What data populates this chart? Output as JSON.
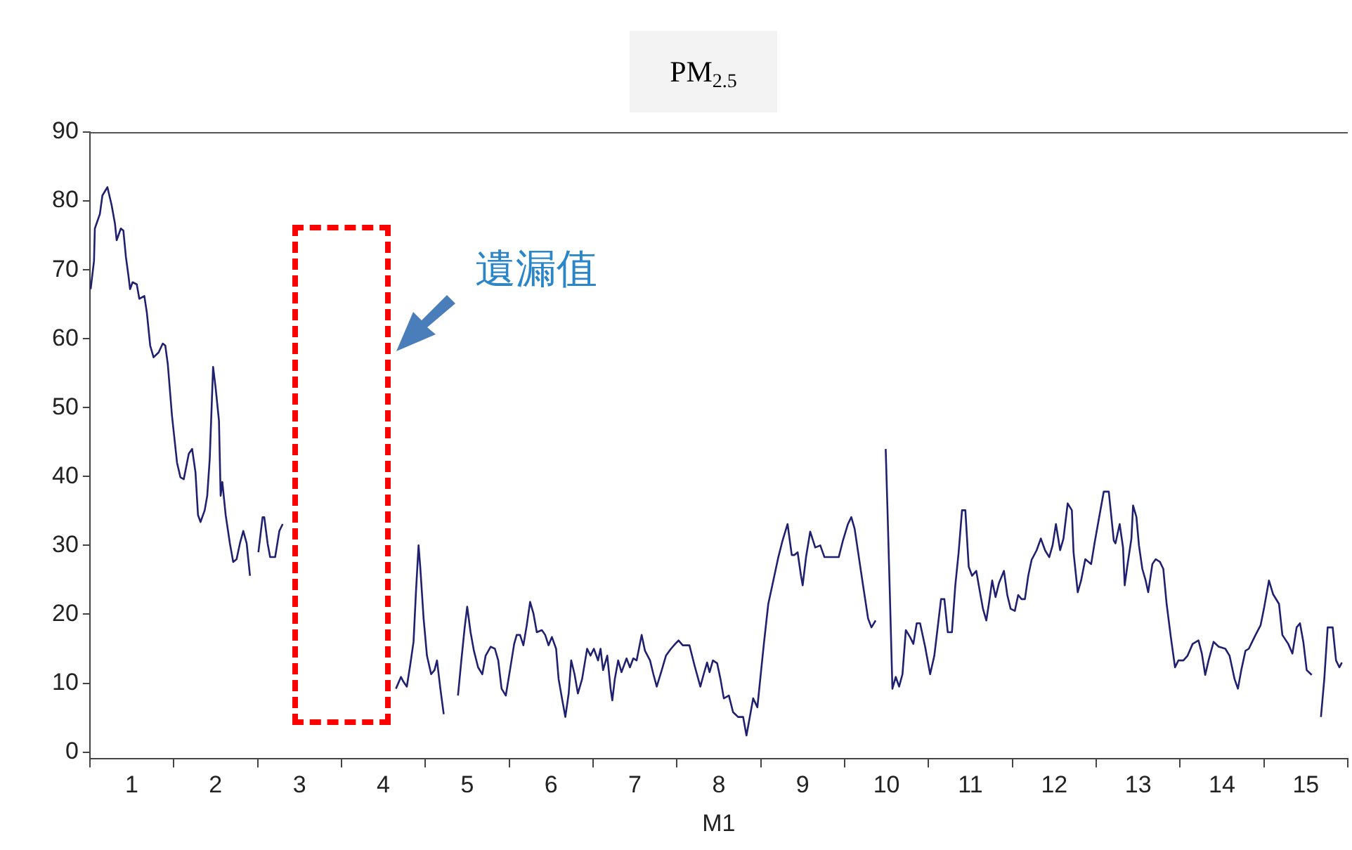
{
  "chart_data": {
    "type": "line",
    "title": "PM$_{2.5}$",
    "xlabel": "M1",
    "annotations": [
      "遺漏值"
    ],
    "xlim": [
      0.5,
      15.5
    ],
    "xticks": [
      {
        "value": 0.5,
        "label": null
      },
      1,
      {
        "value": 1.5,
        "label": null
      },
      2,
      {
        "value": 2.5,
        "label": null
      },
      3,
      {
        "value": 3.5,
        "label": null
      },
      4,
      {
        "value": 4.5,
        "label": null
      },
      5,
      {
        "value": 5.5,
        "label": null
      },
      6,
      {
        "value": 6.5,
        "label": null
      },
      7,
      {
        "value": 7.5,
        "label": null
      },
      8,
      {
        "value": 8.5,
        "label": null
      },
      9,
      {
        "value": 9.5,
        "label": null
      },
      10,
      {
        "value": 10.5,
        "label": null
      },
      11,
      {
        "value": 11.5,
        "label": null
      },
      12,
      {
        "value": 12.5,
        "label": null
      },
      13,
      {
        "value": 13.5,
        "label": null
      },
      14,
      {
        "value": 14.5,
        "label": null
      },
      15,
      {
        "value": 15.5,
        "label": null
      }
    ],
    "ylim": [
      -1,
      90
    ],
    "yticks": [
      0,
      10,
      20,
      30,
      40,
      50,
      60,
      70,
      80,
      90
    ],
    "grid": false,
    "legend": false,
    "marker": "none",
    "line_style": "solid",
    "series": [
      {
        "color": "#202070",
        "x": [
          0.51,
          0.55,
          0.56,
          0.62,
          0.65,
          0.71,
          0.76,
          0.8,
          0.82,
          0.87,
          0.9,
          0.93,
          0.96,
          0.98,
          1.01,
          1.06,
          1.09,
          1.15,
          1.18,
          1.22,
          1.26,
          1.32,
          1.37,
          1.4,
          1.43,
          1.48,
          1.54,
          1.58,
          1.62,
          1.68,
          1.72,
          1.76,
          1.79,
          1.82,
          1.87,
          1.9,
          1.93,
          1.97,
          2.0,
          2.04,
          2.06,
          2.08,
          2.12,
          2.17,
          2.21,
          2.25,
          2.29,
          2.33,
          2.37,
          2.41,
          2.46,
          2.51,
          2.56,
          2.58,
          2.62,
          2.65,
          2.71,
          2.76,
          2.8,
          3.5,
          4.15,
          4.21,
          4.24,
          4.28,
          4.32,
          4.36,
          4.39,
          4.42,
          4.44,
          4.48,
          4.52,
          4.57,
          4.61,
          4.64,
          4.68,
          4.72,
          4.8,
          4.89,
          4.93,
          4.97,
          5.0,
          5.04,
          5.08,
          5.13,
          5.18,
          5.22,
          5.28,
          5.33,
          5.37,
          5.41,
          5.46,
          5.51,
          5.56,
          5.59,
          5.63,
          5.67,
          5.71,
          5.75,
          5.79,
          5.83,
          5.89,
          5.93,
          5.97,
          6.01,
          6.06,
          6.09,
          6.13,
          6.17,
          6.21,
          6.24,
          6.28,
          6.32,
          6.37,
          6.43,
          6.47,
          6.51,
          6.56,
          6.59,
          6.62,
          6.67,
          6.71,
          6.73,
          6.76,
          6.8,
          6.84,
          6.9,
          6.94,
          6.98,
          7.02,
          7.08,
          7.12,
          7.18,
          7.22,
          7.26,
          7.32,
          7.37,
          7.43,
          7.48,
          7.52,
          7.57,
          7.65,
          7.71,
          7.78,
          7.82,
          7.86,
          7.89,
          7.93,
          7.98,
          8.02,
          8.06,
          8.12,
          8.17,
          8.23,
          8.29,
          8.33,
          8.37,
          8.41,
          8.46,
          8.5,
          8.54,
          8.59,
          8.65,
          8.71,
          8.76,
          8.82,
          8.87,
          8.9,
          8.94,
          8.98,
          9.0,
          9.04,
          9.09,
          9.15,
          9.21,
          9.26,
          9.34,
          9.43,
          9.48,
          9.54,
          9.58,
          9.62,
          9.67,
          9.72,
          9.78,
          9.82,
          9.87,
          9.93,
          9.99,
          10.01,
          10.04,
          10.07,
          10.11,
          10.15,
          10.19,
          10.23,
          10.28,
          10.32,
          10.36,
          10.4,
          10.46,
          10.52,
          10.57,
          10.61,
          10.65,
          10.69,
          10.73,
          10.78,
          10.82,
          10.86,
          10.9,
          10.94,
          10.98,
          11.02,
          11.07,
          11.11,
          11.15,
          11.19,
          11.22,
          11.26,
          11.3,
          11.34,
          11.4,
          11.44,
          11.48,
          11.53,
          11.57,
          11.61,
          11.65,
          11.69,
          11.73,
          11.79,
          11.84,
          11.89,
          11.94,
          11.98,
          12.02,
          12.07,
          12.11,
          12.16,
          12.21,
          12.23,
          12.28,
          12.32,
          12.37,
          12.41,
          12.44,
          12.48,
          12.54,
          12.59,
          12.65,
          12.71,
          12.73,
          12.78,
          12.82,
          12.84,
          12.87,
          12.92,
          12.94,
          12.98,
          13.01,
          13.05,
          13.09,
          13.12,
          13.17,
          13.21,
          13.26,
          13.3,
          13.34,
          13.39,
          13.44,
          13.48,
          13.54,
          13.59,
          13.65,
          13.72,
          13.76,
          13.8,
          13.84,
          13.9,
          13.96,
          14.04,
          14.09,
          14.15,
          14.19,
          14.23,
          14.28,
          14.32,
          14.36,
          14.4,
          14.46,
          14.5,
          14.56,
          14.61,
          14.68,
          14.72,
          14.79,
          14.84,
          14.89,
          14.93,
          14.97,
          15.01,
          15.07,
          15.12,
          15.18,
          15.22,
          15.26,
          15.32,
          15.36,
          15.4,
          15.43
        ],
        "values": [
          67.2,
          71.3,
          76.0,
          78.1,
          80.8,
          82.0,
          79.4,
          76.7,
          74.3,
          76.0,
          75.7,
          71.9,
          69.2,
          67.2,
          68.2,
          67.9,
          65.8,
          66.2,
          63.8,
          59.0,
          57.3,
          58.0,
          59.3,
          59.0,
          56.3,
          48.8,
          42.0,
          39.9,
          39.6,
          43.3,
          44.0,
          40.6,
          34.4,
          33.4,
          35.1,
          37.2,
          42.6,
          55.9,
          52.9,
          48.1,
          37.2,
          39.2,
          34.4,
          30.3,
          27.6,
          28.0,
          30.3,
          32.1,
          30.3,
          25.6,
          null,
          29.0,
          34.1,
          34.1,
          30.3,
          28.3,
          28.3,
          32.1,
          33.1,
          null,
          9.2,
          10.9,
          10.2,
          9.5,
          12.6,
          16.0,
          23.5,
          30.0,
          26.9,
          19.4,
          14.0,
          11.3,
          11.9,
          13.3,
          9.2,
          5.5,
          null,
          8.2,
          13.3,
          18.1,
          21.1,
          17.4,
          14.7,
          12.3,
          11.3,
          14.0,
          15.3,
          15.0,
          13.3,
          9.2,
          8.2,
          11.9,
          15.7,
          17.0,
          17.0,
          15.5,
          18.4,
          21.8,
          20.1,
          17.4,
          17.7,
          17.0,
          15.5,
          16.7,
          15.0,
          10.6,
          7.8,
          5.1,
          8.5,
          13.3,
          11.3,
          8.5,
          10.6,
          15.0,
          14.0,
          15.0,
          13.3,
          15.0,
          11.9,
          14.0,
          9.2,
          7.5,
          10.6,
          13.3,
          11.6,
          13.6,
          12.3,
          13.6,
          13.3,
          17.0,
          14.7,
          13.3,
          11.3,
          9.5,
          11.9,
          14.0,
          15.0,
          15.7,
          16.2,
          15.5,
          15.5,
          12.6,
          9.5,
          11.3,
          13.0,
          11.6,
          13.3,
          12.9,
          10.6,
          7.8,
          8.2,
          5.8,
          5.1,
          5.1,
          2.4,
          5.1,
          7.8,
          6.5,
          11.3,
          16.0,
          21.5,
          24.9,
          28.3,
          30.7,
          33.1,
          28.6,
          28.6,
          29.0,
          25.6,
          24.2,
          28.3,
          32.0,
          29.7,
          30.0,
          28.3,
          28.3,
          28.3,
          30.7,
          33.1,
          34.1,
          32.4,
          28.3,
          24.2,
          19.4,
          18.1,
          19.1,
          null,
          44.0,
          35.8,
          22.8,
          9.2,
          10.9,
          9.5,
          11.3,
          17.7,
          16.7,
          15.7,
          18.7,
          18.7,
          15.3,
          11.3,
          14.0,
          18.1,
          22.2,
          22.2,
          17.4,
          17.4,
          24.2,
          29.0,
          35.1,
          35.1,
          26.9,
          25.6,
          26.3,
          23.5,
          20.8,
          19.1,
          21.5,
          24.9,
          22.5,
          24.5,
          26.3,
          22.8,
          20.8,
          20.5,
          22.8,
          22.2,
          22.2,
          25.6,
          27.9,
          29.3,
          31.0,
          29.3,
          28.3,
          30.0,
          33.1,
          29.3,
          31.0,
          36.1,
          35.1,
          29.0,
          23.2,
          24.9,
          28.0,
          27.6,
          27.3,
          30.3,
          34.4,
          37.8,
          37.8,
          30.7,
          30.3,
          33.1,
          29.7,
          24.2,
          26.9,
          31.0,
          35.8,
          34.1,
          30.0,
          26.6,
          24.9,
          23.2,
          27.3,
          28.0,
          27.6,
          26.6,
          21.5,
          16.7,
          12.3,
          13.3,
          13.3,
          14.0,
          15.7,
          16.2,
          14.3,
          11.2,
          13.3,
          16.0,
          15.3,
          15.0,
          14.0,
          10.6,
          9.2,
          11.9,
          14.7,
          15.0,
          16.0,
          17.0,
          18.4,
          20.8,
          24.9,
          22.9,
          21.5,
          17.0,
          15.7,
          14.3,
          18.1,
          18.7,
          16.0,
          11.9,
          11.2,
          null,
          5.1,
          10.6,
          18.1,
          18.1,
          13.3,
          12.3,
          13.0
        ]
      }
    ]
  }
}
